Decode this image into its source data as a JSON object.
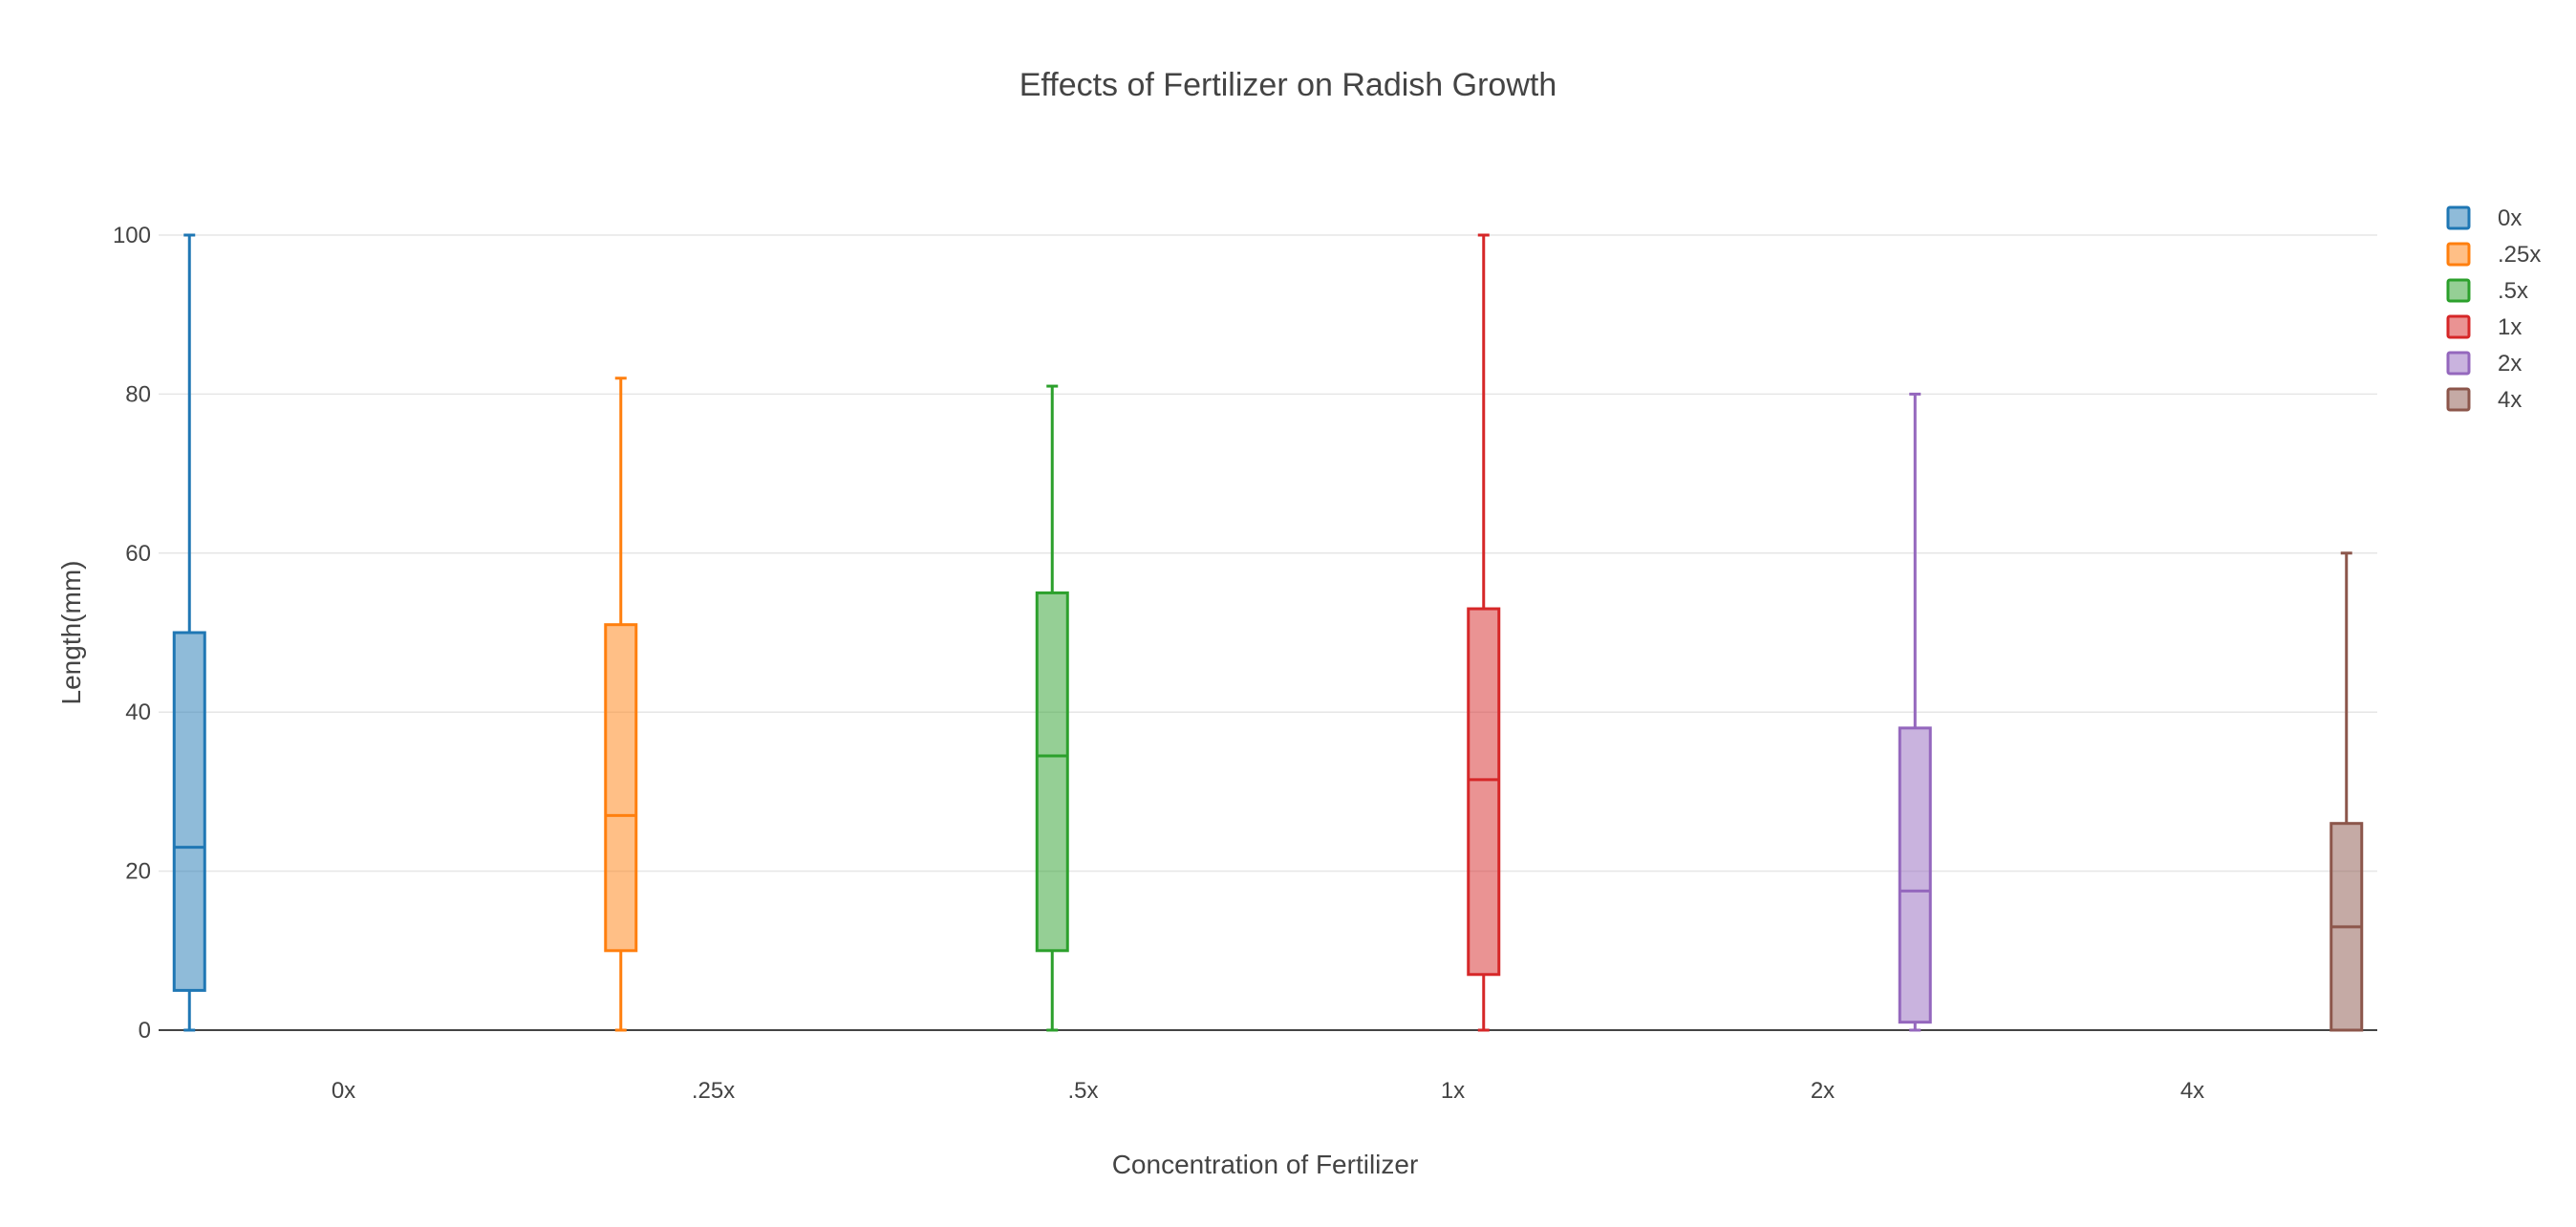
{
  "chart_data": {
    "type": "box",
    "title": "Effects of Fertilizer on Radish Growth",
    "xlabel": "Concentration of Fertilizer",
    "ylabel": "Length(mm)",
    "categories": [
      "0x",
      ".25x",
      ".5x",
      "1x",
      "2x",
      "4x"
    ],
    "ylim": [
      0,
      100
    ],
    "yticks": [
      0,
      20,
      40,
      60,
      80,
      100
    ],
    "grid": true,
    "legend_position": "top-right",
    "series": [
      {
        "name": "0x",
        "color": "#1f77b4",
        "min": 0,
        "q1": 5,
        "median": 23,
        "q3": 50,
        "max": 100
      },
      {
        "name": ".25x",
        "color": "#ff7f0e",
        "min": 0,
        "q1": 10,
        "median": 27,
        "q3": 51,
        "max": 82
      },
      {
        "name": ".5x",
        "color": "#2ca02c",
        "min": 0,
        "q1": 10,
        "median": 34.5,
        "q3": 55,
        "max": 81
      },
      {
        "name": "1x",
        "color": "#d62728",
        "min": 0,
        "q1": 7,
        "median": 31.5,
        "q3": 53,
        "max": 100
      },
      {
        "name": "2x",
        "color": "#9467bd",
        "min": 0,
        "q1": 1,
        "median": 17.5,
        "q3": 38,
        "max": 80
      },
      {
        "name": "4x",
        "color": "#8c564b",
        "min": 0,
        "q1": 0,
        "median": 13,
        "q3": 26,
        "max": 60
      }
    ]
  }
}
